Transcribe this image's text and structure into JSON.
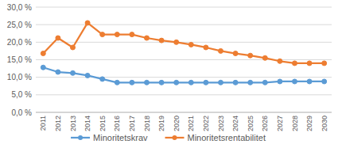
{
  "chart_data": {
    "type": "line",
    "categories": [
      "2011",
      "2012",
      "2013",
      "2014",
      "2015",
      "2016",
      "2017",
      "2018",
      "2019",
      "2020",
      "2021",
      "2022",
      "2023",
      "2024",
      "2025",
      "2026",
      "2027",
      "2028",
      "2029",
      "2030"
    ],
    "series": [
      {
        "name": "Minoritetskrav",
        "color": "#5b9bd5",
        "marker": "circle",
        "values": [
          12.8,
          11.5,
          11.2,
          10.5,
          9.5,
          8.5,
          8.5,
          8.5,
          8.5,
          8.5,
          8.5,
          8.5,
          8.5,
          8.5,
          8.5,
          8.5,
          8.8,
          8.8,
          8.8,
          8.8
        ]
      },
      {
        "name": "Minoritetsrentabilitet",
        "color": "#ed7d31",
        "marker": "circle",
        "values": [
          16.8,
          21.2,
          18.5,
          25.5,
          22.2,
          22.2,
          22.2,
          21.2,
          20.5,
          20.0,
          19.3,
          18.5,
          17.5,
          16.8,
          16.2,
          15.5,
          14.6,
          14.0,
          14.0,
          14.0
        ]
      }
    ],
    "ylim": [
      0,
      30
    ],
    "yticks": [
      {
        "value": 0,
        "label": "0,0 %"
      },
      {
        "value": 5,
        "label": "5,0 %"
      },
      {
        "value": 10,
        "label": "10,0 %"
      },
      {
        "value": 15,
        "label": "15,0 %"
      },
      {
        "value": 20,
        "label": "20,0 %"
      },
      {
        "value": 25,
        "label": "25,0 %"
      },
      {
        "value": 30,
        "label": "30,0 %"
      }
    ],
    "grid": true,
    "legend": "bottom"
  }
}
